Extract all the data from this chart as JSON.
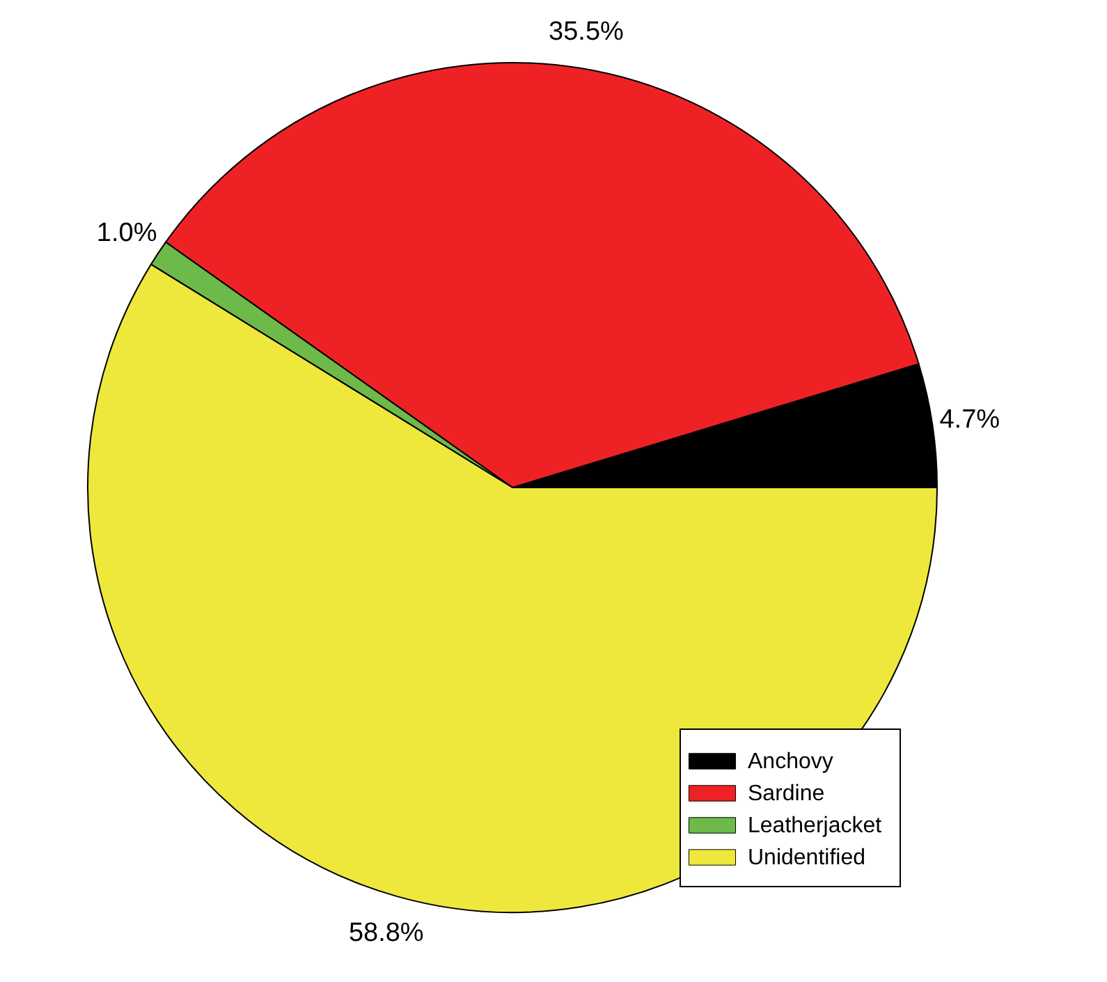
{
  "chart_data": {
    "type": "pie",
    "categories": [
      "Anchovy",
      "Sardine",
      "Leatherjacket",
      "Unidentified"
    ],
    "values": [
      4.7,
      35.5,
      1.0,
      58.8
    ],
    "colors": [
      "#000000",
      "#ee2225",
      "#6db94a",
      "#eee83d"
    ],
    "value_labels": [
      "4.7%",
      "35.5%",
      "1.0%",
      "58.8%"
    ],
    "legend": "bottom right"
  }
}
